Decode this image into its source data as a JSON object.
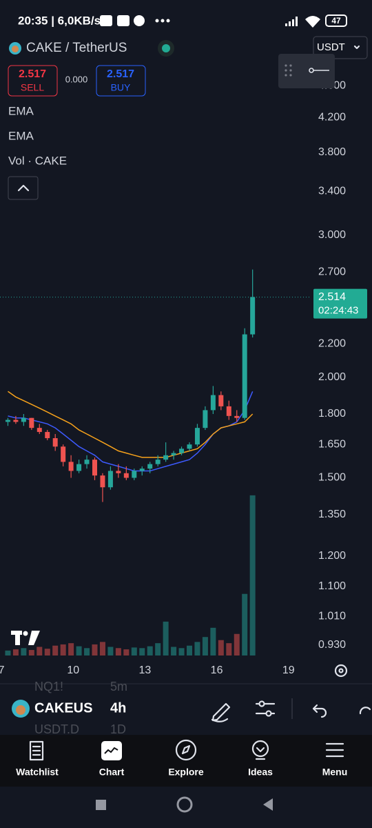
{
  "status_bar": {
    "time_speed": "20:35 | 6,0KB/s",
    "battery": "47"
  },
  "header": {
    "symbol": "CAKE / TetherUS",
    "currency": "USDT"
  },
  "trade": {
    "sell_price": "2.517",
    "sell_label": "SELL",
    "spread": "0.000",
    "buy_price": "2.517",
    "buy_label": "BUY"
  },
  "chart_data": {
    "type": "candlestick",
    "x": [
      7.27,
      7.6,
      7.93,
      8.26,
      8.59,
      8.92,
      9.25,
      9.58,
      9.91,
      10.24,
      10.57,
      10.9,
      11.23,
      11.56,
      11.89,
      12.22,
      12.55,
      12.88,
      13.21,
      13.54,
      13.87,
      14.2,
      14.53,
      14.86,
      15.19,
      15.52,
      15.85,
      16.18,
      16.51,
      16.84,
      17.17,
      17.5
    ],
    "open": [
      1.76,
      1.77,
      1.76,
      1.78,
      1.73,
      1.71,
      1.68,
      1.64,
      1.57,
      1.53,
      1.56,
      1.58,
      1.51,
      1.46,
      1.53,
      1.52,
      1.5,
      1.53,
      1.54,
      1.56,
      1.58,
      1.6,
      1.61,
      1.63,
      1.65,
      1.73,
      1.82,
      1.9,
      1.84,
      1.79,
      1.78,
      2.26
    ],
    "high": [
      1.78,
      1.79,
      1.8,
      1.78,
      1.75,
      1.72,
      1.7,
      1.65,
      1.6,
      1.58,
      1.6,
      1.59,
      1.52,
      1.55,
      1.56,
      1.55,
      1.54,
      1.55,
      1.57,
      1.6,
      1.66,
      1.62,
      1.64,
      1.66,
      1.75,
      1.84,
      1.95,
      1.92,
      1.87,
      1.82,
      2.3,
      2.72
    ],
    "low": [
      1.74,
      1.75,
      1.74,
      1.72,
      1.7,
      1.67,
      1.62,
      1.55,
      1.5,
      1.52,
      1.54,
      1.49,
      1.4,
      1.45,
      1.5,
      1.49,
      1.49,
      1.51,
      1.52,
      1.55,
      1.57,
      1.58,
      1.6,
      1.62,
      1.64,
      1.72,
      1.8,
      1.82,
      1.77,
      1.76,
      1.77,
      2.24
    ],
    "close": [
      1.77,
      1.76,
      1.78,
      1.73,
      1.71,
      1.68,
      1.64,
      1.57,
      1.53,
      1.56,
      1.58,
      1.51,
      1.46,
      1.53,
      1.52,
      1.5,
      1.53,
      1.54,
      1.56,
      1.58,
      1.6,
      1.61,
      1.63,
      1.65,
      1.73,
      1.82,
      1.9,
      1.84,
      1.79,
      1.78,
      2.26,
      2.514
    ],
    "volume": [
      8,
      10,
      12,
      9,
      14,
      11,
      16,
      18,
      20,
      15,
      12,
      18,
      22,
      14,
      12,
      10,
      13,
      12,
      15,
      20,
      55,
      14,
      12,
      16,
      22,
      30,
      45,
      25,
      20,
      35,
      100,
      260
    ],
    "volume_label": "Vol · CAKE",
    "vlim": [
      0,
      280
    ],
    "up_color": "#26a69a",
    "down_color": "#ef5350",
    "series": [
      {
        "name": "EMA",
        "color": "#3d5afe",
        "values": [
          1.79,
          1.78,
          1.78,
          1.77,
          1.76,
          1.75,
          1.73,
          1.7,
          1.67,
          1.64,
          1.62,
          1.6,
          1.57,
          1.56,
          1.55,
          1.54,
          1.53,
          1.53,
          1.53,
          1.54,
          1.55,
          1.56,
          1.57,
          1.58,
          1.61,
          1.65,
          1.7,
          1.73,
          1.74,
          1.76,
          1.82,
          1.92
        ]
      },
      {
        "name": "EMA",
        "color": "#f7a21b",
        "values": [
          1.92,
          1.89,
          1.87,
          1.85,
          1.83,
          1.81,
          1.79,
          1.77,
          1.75,
          1.72,
          1.7,
          1.68,
          1.66,
          1.64,
          1.62,
          1.61,
          1.6,
          1.59,
          1.59,
          1.59,
          1.59,
          1.6,
          1.61,
          1.62,
          1.63,
          1.66,
          1.7,
          1.73,
          1.74,
          1.75,
          1.76,
          1.8
        ]
      }
    ],
    "last_price": {
      "value": 2.514,
      "label": "2.514"
    },
    "countdown": "02:24:43",
    "log_scale": true,
    "xlim": [
      6.94,
      19.9
    ],
    "ylim": [
      0.894,
      4.92
    ],
    "xticks": [
      7,
      10,
      13,
      16,
      19
    ],
    "yticks": [
      {
        "value": 4.6,
        "label": "4.600"
      },
      {
        "value": 4.2,
        "label": "4.200"
      },
      {
        "value": 3.8,
        "label": "3.800"
      },
      {
        "value": 3.4,
        "label": "3.400"
      },
      {
        "value": 3.0,
        "label": "3.000"
      },
      {
        "value": 2.7,
        "label": "2.700"
      },
      {
        "value": 2.2,
        "label": "2.200"
      },
      {
        "value": 2.0,
        "label": "2.000"
      },
      {
        "value": 1.8,
        "label": "1.800"
      },
      {
        "value": 1.65,
        "label": "1.650"
      },
      {
        "value": 1.5,
        "label": "1.500"
      },
      {
        "value": 1.35,
        "label": "1.350"
      },
      {
        "value": 1.2,
        "label": "1.200"
      },
      {
        "value": 1.1,
        "label": "1.100"
      },
      {
        "value": 1.01,
        "label": "1.010"
      },
      {
        "value": 0.93,
        "label": "0.930"
      }
    ],
    "grid": false
  },
  "toolbar": {
    "prev_symbol": "NQ1!",
    "prev_interval": "5m",
    "symbol": "CAKEUS",
    "interval": "4h",
    "next_symbol": "USDT.D",
    "next_interval": "1D"
  },
  "nav": {
    "items": [
      {
        "label": "Watchlist"
      },
      {
        "label": "Chart"
      },
      {
        "label": "Explore"
      },
      {
        "label": "Ideas"
      },
      {
        "label": "Menu"
      }
    ]
  }
}
